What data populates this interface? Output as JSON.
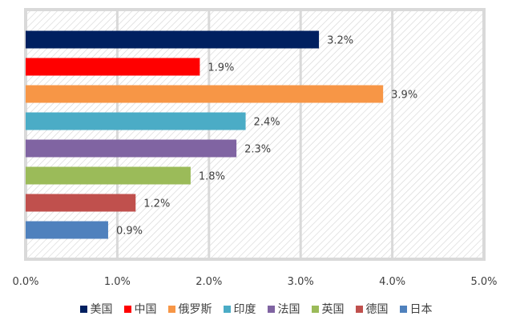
{
  "chart_data": {
    "type": "bar",
    "orientation": "horizontal",
    "categories": [
      "美国",
      "中国",
      "俄罗斯",
      "印度",
      "法国",
      "英国",
      "德国",
      "日本"
    ],
    "values": [
      3.2,
      1.9,
      3.9,
      2.4,
      2.3,
      1.8,
      1.2,
      0.9
    ],
    "data_labels": [
      "3.2%",
      "1.9%",
      "3.9%",
      "2.4%",
      "2.3%",
      "1.8%",
      "1.2%",
      "0.9%"
    ],
    "colors": [
      "#002060",
      "#ff0000",
      "#f79646",
      "#4bacc6",
      "#8064a2",
      "#9bbb59",
      "#c0504d",
      "#4f81bd"
    ],
    "xlim": [
      0,
      5
    ],
    "x_ticks": [
      "0.0%",
      "1.0%",
      "2.0%",
      "3.0%",
      "4.0%",
      "5.0%"
    ],
    "title": "",
    "xlabel": "",
    "ylabel": "",
    "grid": true,
    "background": "hatched",
    "legend_position": "bottom"
  }
}
